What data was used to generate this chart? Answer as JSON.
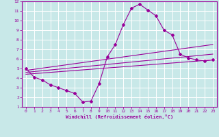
{
  "xlabel": "Windchill (Refroidissement éolien,°C)",
  "bg_color": "#c8e8e8",
  "grid_color": "#ffffff",
  "line_color": "#990099",
  "xlim": [
    -0.5,
    23.5
  ],
  "ylim": [
    1,
    12
  ],
  "xticks": [
    0,
    1,
    2,
    3,
    4,
    5,
    6,
    7,
    8,
    9,
    10,
    11,
    12,
    13,
    14,
    15,
    16,
    17,
    18,
    19,
    20,
    21,
    22,
    23
  ],
  "yticks": [
    1,
    2,
    3,
    4,
    5,
    6,
    7,
    8,
    9,
    10,
    11,
    12
  ],
  "main_x": [
    0,
    1,
    2,
    3,
    4,
    5,
    6,
    7,
    8,
    9,
    10,
    11,
    12,
    13,
    14,
    15,
    16,
    17,
    18,
    19,
    20,
    21,
    22,
    23
  ],
  "main_y": [
    5.0,
    4.1,
    3.8,
    3.3,
    3.0,
    2.7,
    2.4,
    1.5,
    1.6,
    3.4,
    6.2,
    7.5,
    9.6,
    11.3,
    11.7,
    11.1,
    10.5,
    9.0,
    8.5,
    6.5,
    6.1,
    5.9,
    5.8,
    5.9
  ],
  "line1_x": [
    0,
    23
  ],
  "line1_y": [
    4.8,
    7.5
  ],
  "line2_x": [
    0,
    23
  ],
  "line2_y": [
    4.6,
    6.5
  ],
  "line3_x": [
    0,
    23
  ],
  "line3_y": [
    4.4,
    5.9
  ]
}
